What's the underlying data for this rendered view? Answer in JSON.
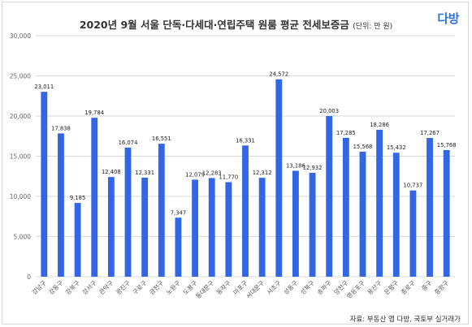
{
  "chart_data": {
    "type": "bar",
    "title": "2020년 9월 서울 단독·다세대·연립주택 원룸 평균 전세보증금",
    "unit_label": "(단위: 만 원)",
    "categories": [
      "강남구",
      "강동구",
      "강북구",
      "강서구",
      "관악구",
      "광진구",
      "구로구",
      "금천구",
      "노원구",
      "도봉구",
      "동대문구",
      "동작구",
      "마포구",
      "서대문구",
      "서초구",
      "성동구",
      "성북구",
      "송파구",
      "양천구",
      "영등포구",
      "용산구",
      "은평구",
      "종로구",
      "중구",
      "중랑구"
    ],
    "values": [
      23011,
      17838,
      9185,
      19784,
      12408,
      16074,
      12331,
      16551,
      7347,
      12079,
      12283,
      11770,
      16331,
      12312,
      24572,
      13186,
      12932,
      20003,
      17285,
      15568,
      18286,
      15432,
      10737,
      17267,
      15768
    ],
    "value_labels": [
      "23,011",
      "17,838",
      "9,185",
      "19,784",
      "12,408",
      "16,074",
      "12,331",
      "16,551",
      "7,347",
      "12,079",
      "12,283",
      "11,770",
      "16,331",
      "12,312",
      "24,572",
      "13,186",
      "12,932",
      "20,003",
      "17,285",
      "15,568",
      "18,286",
      "15,432",
      "10,737",
      "17,267",
      "15,768"
    ],
    "ylim": [
      0,
      30000
    ],
    "yticks": [
      "0",
      "5,000",
      "10,000",
      "15,000",
      "20,000",
      "25,000",
      "30,000"
    ],
    "ytick_values": [
      0,
      5000,
      10000,
      15000,
      20000,
      25000,
      30000
    ],
    "bar_color": "#3366e6",
    "grid": true,
    "xlabel": "",
    "ylabel": ""
  },
  "logo_text": "다방",
  "source": "자료: 부동산 앱 다방, 국토부 실거래가"
}
